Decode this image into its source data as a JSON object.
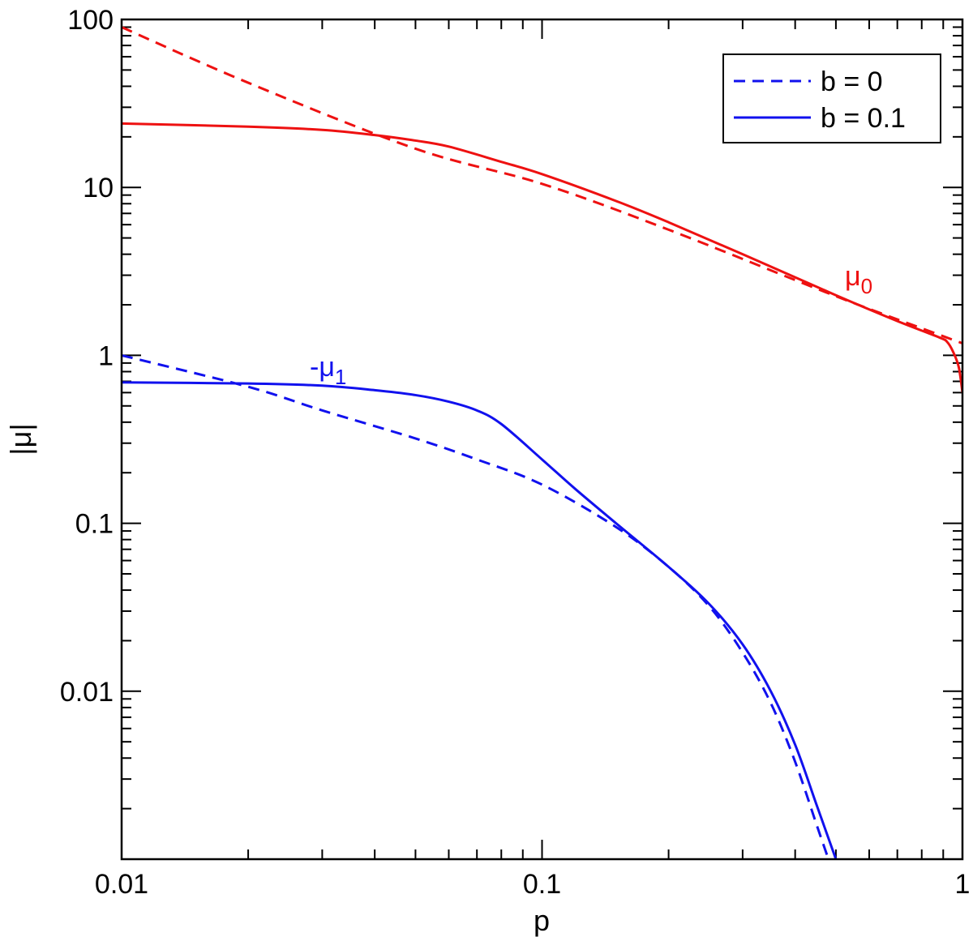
{
  "chart_data": {
    "type": "line",
    "xlabel": "p",
    "ylabel": "|μ|",
    "xscale": "log",
    "yscale": "log",
    "xlim": [
      0.01,
      1
    ],
    "ylim": [
      0.001,
      100
    ],
    "x_ticks": [
      {
        "value": 0.01,
        "label": "0.01"
      },
      {
        "value": 0.1,
        "label": "0.1"
      },
      {
        "value": 1,
        "label": "1"
      }
    ],
    "y_ticks": [
      {
        "value": 100,
        "label": "100"
      },
      {
        "value": 10,
        "label": "10"
      },
      {
        "value": 1,
        "label": "1"
      },
      {
        "value": 0.1,
        "label": "0.1"
      },
      {
        "value": 0.01,
        "label": "0.01"
      }
    ],
    "legend": {
      "position": "top-right",
      "entries": [
        {
          "label": "b = 0",
          "style": "dashed",
          "color": "#1111ee"
        },
        {
          "label": "b = 0.1",
          "style": "solid",
          "color": "#1111ee"
        }
      ]
    },
    "curve_labels": [
      {
        "label": "μ",
        "subscript": "0",
        "color": "#ee1111"
      },
      {
        "label": "-μ",
        "subscript": "1",
        "color": "#1111ee"
      }
    ],
    "series": [
      {
        "color": "#ee1111",
        "style": "dashed",
        "x": [
          0.01,
          0.02,
          0.05,
          0.1,
          0.2,
          0.5,
          0.9,
          1.0
        ],
        "y": [
          90,
          42,
          17,
          10.5,
          5.6,
          2.25,
          1.3,
          1.18
        ]
      },
      {
        "color": "#ee1111",
        "style": "solid",
        "x": [
          0.01,
          0.02,
          0.03,
          0.04,
          0.05,
          0.06,
          0.08,
          0.1,
          0.15,
          0.2,
          0.3,
          0.5,
          0.7,
          0.88,
          0.92,
          0.95,
          0.98,
          1.0
        ],
        "y": [
          24,
          23,
          22,
          20.5,
          19,
          17.5,
          14.2,
          12,
          8.3,
          6.2,
          4.0,
          2.28,
          1.6,
          1.28,
          1.2,
          1.05,
          0.85,
          0.6
        ]
      },
      {
        "color": "#1111ee",
        "style": "dashed",
        "x": [
          0.01,
          0.02,
          0.03,
          0.05,
          0.07,
          0.1,
          0.15,
          0.2,
          0.25,
          0.3,
          0.35,
          0.4,
          0.45,
          0.48
        ],
        "y": [
          1.0,
          0.65,
          0.47,
          0.32,
          0.24,
          0.17,
          0.095,
          0.055,
          0.032,
          0.017,
          0.0085,
          0.0038,
          0.0016,
          0.001
        ]
      },
      {
        "color": "#1111ee",
        "style": "solid",
        "x": [
          0.01,
          0.02,
          0.03,
          0.04,
          0.05,
          0.06,
          0.07,
          0.08,
          0.1,
          0.12,
          0.15,
          0.2,
          0.25,
          0.3,
          0.35,
          0.4,
          0.45,
          0.5
        ],
        "y": [
          0.69,
          0.68,
          0.66,
          0.62,
          0.58,
          0.53,
          0.47,
          0.39,
          0.24,
          0.16,
          0.1,
          0.055,
          0.033,
          0.019,
          0.01,
          0.0048,
          0.0021,
          0.001
        ]
      }
    ]
  }
}
